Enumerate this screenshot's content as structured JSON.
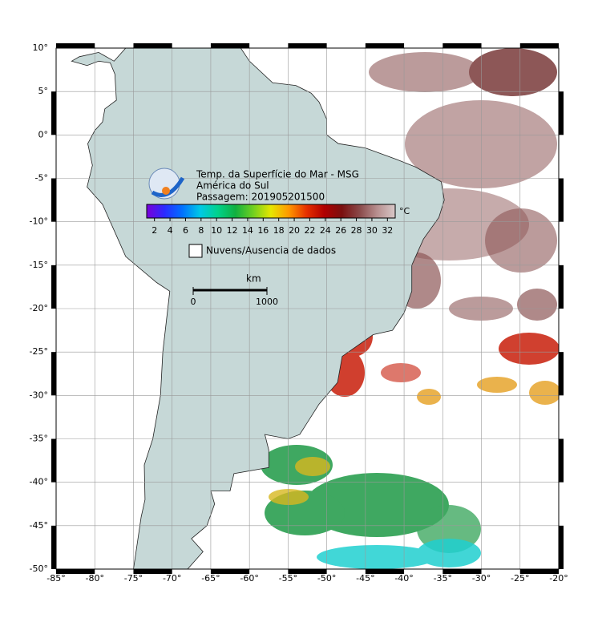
{
  "map": {
    "title": "Temp. da Superfície do Mar - MSG",
    "subtitle": "América do Sul",
    "pass": "Passagem: 201905201500",
    "lon_range": [
      -85,
      -20
    ],
    "lat_range": [
      -50,
      10
    ],
    "lon_ticks": [
      {
        "value": -85,
        "label": "-85°"
      },
      {
        "value": -80,
        "label": "-80°"
      },
      {
        "value": -75,
        "label": "-75°"
      },
      {
        "value": -70,
        "label": "-70°"
      },
      {
        "value": -65,
        "label": "-65°"
      },
      {
        "value": -60,
        "label": "-60°"
      },
      {
        "value": -55,
        "label": "-55°"
      },
      {
        "value": -50,
        "label": "-50°"
      },
      {
        "value": -45,
        "label": "-45°"
      },
      {
        "value": -40,
        "label": "-40°"
      },
      {
        "value": -35,
        "label": "-35°"
      },
      {
        "value": -30,
        "label": "-30°"
      },
      {
        "value": -25,
        "label": "-25°"
      },
      {
        "value": -20,
        "label": "-20°"
      }
    ],
    "lat_ticks": [
      {
        "value": 10,
        "label": "10°"
      },
      {
        "value": 5,
        "label": "5°"
      },
      {
        "value": 0,
        "label": "0°"
      },
      {
        "value": -5,
        "label": "-5°"
      },
      {
        "value": -10,
        "label": "-10°"
      },
      {
        "value": -15,
        "label": "-15°"
      },
      {
        "value": -20,
        "label": "-20°"
      },
      {
        "value": -25,
        "label": "-25°"
      },
      {
        "value": -30,
        "label": "-30°"
      },
      {
        "value": -35,
        "label": "-35°"
      },
      {
        "value": -40,
        "label": "-40°"
      },
      {
        "value": -45,
        "label": "-45°"
      },
      {
        "value": -50,
        "label": "-50°"
      }
    ],
    "colorbar": {
      "range": [
        1,
        33
      ],
      "ticks": [
        2,
        4,
        6,
        8,
        10,
        12,
        14,
        16,
        18,
        20,
        22,
        24,
        26,
        28,
        30,
        32
      ],
      "unit": "°C",
      "colors": [
        "#7a00d9",
        "#2a2aff",
        "#0070ff",
        "#00c8e6",
        "#00d28c",
        "#10b040",
        "#70d020",
        "#e6e600",
        "#ff9900",
        "#e63000",
        "#b00000",
        "#7a1010",
        "#8a4a4a",
        "#b89090",
        "#d8c8c8"
      ]
    },
    "legend": "Nuvens/Ausencia de dados",
    "scale": {
      "unit": "km",
      "ticks": [
        0,
        1000
      ]
    }
  }
}
